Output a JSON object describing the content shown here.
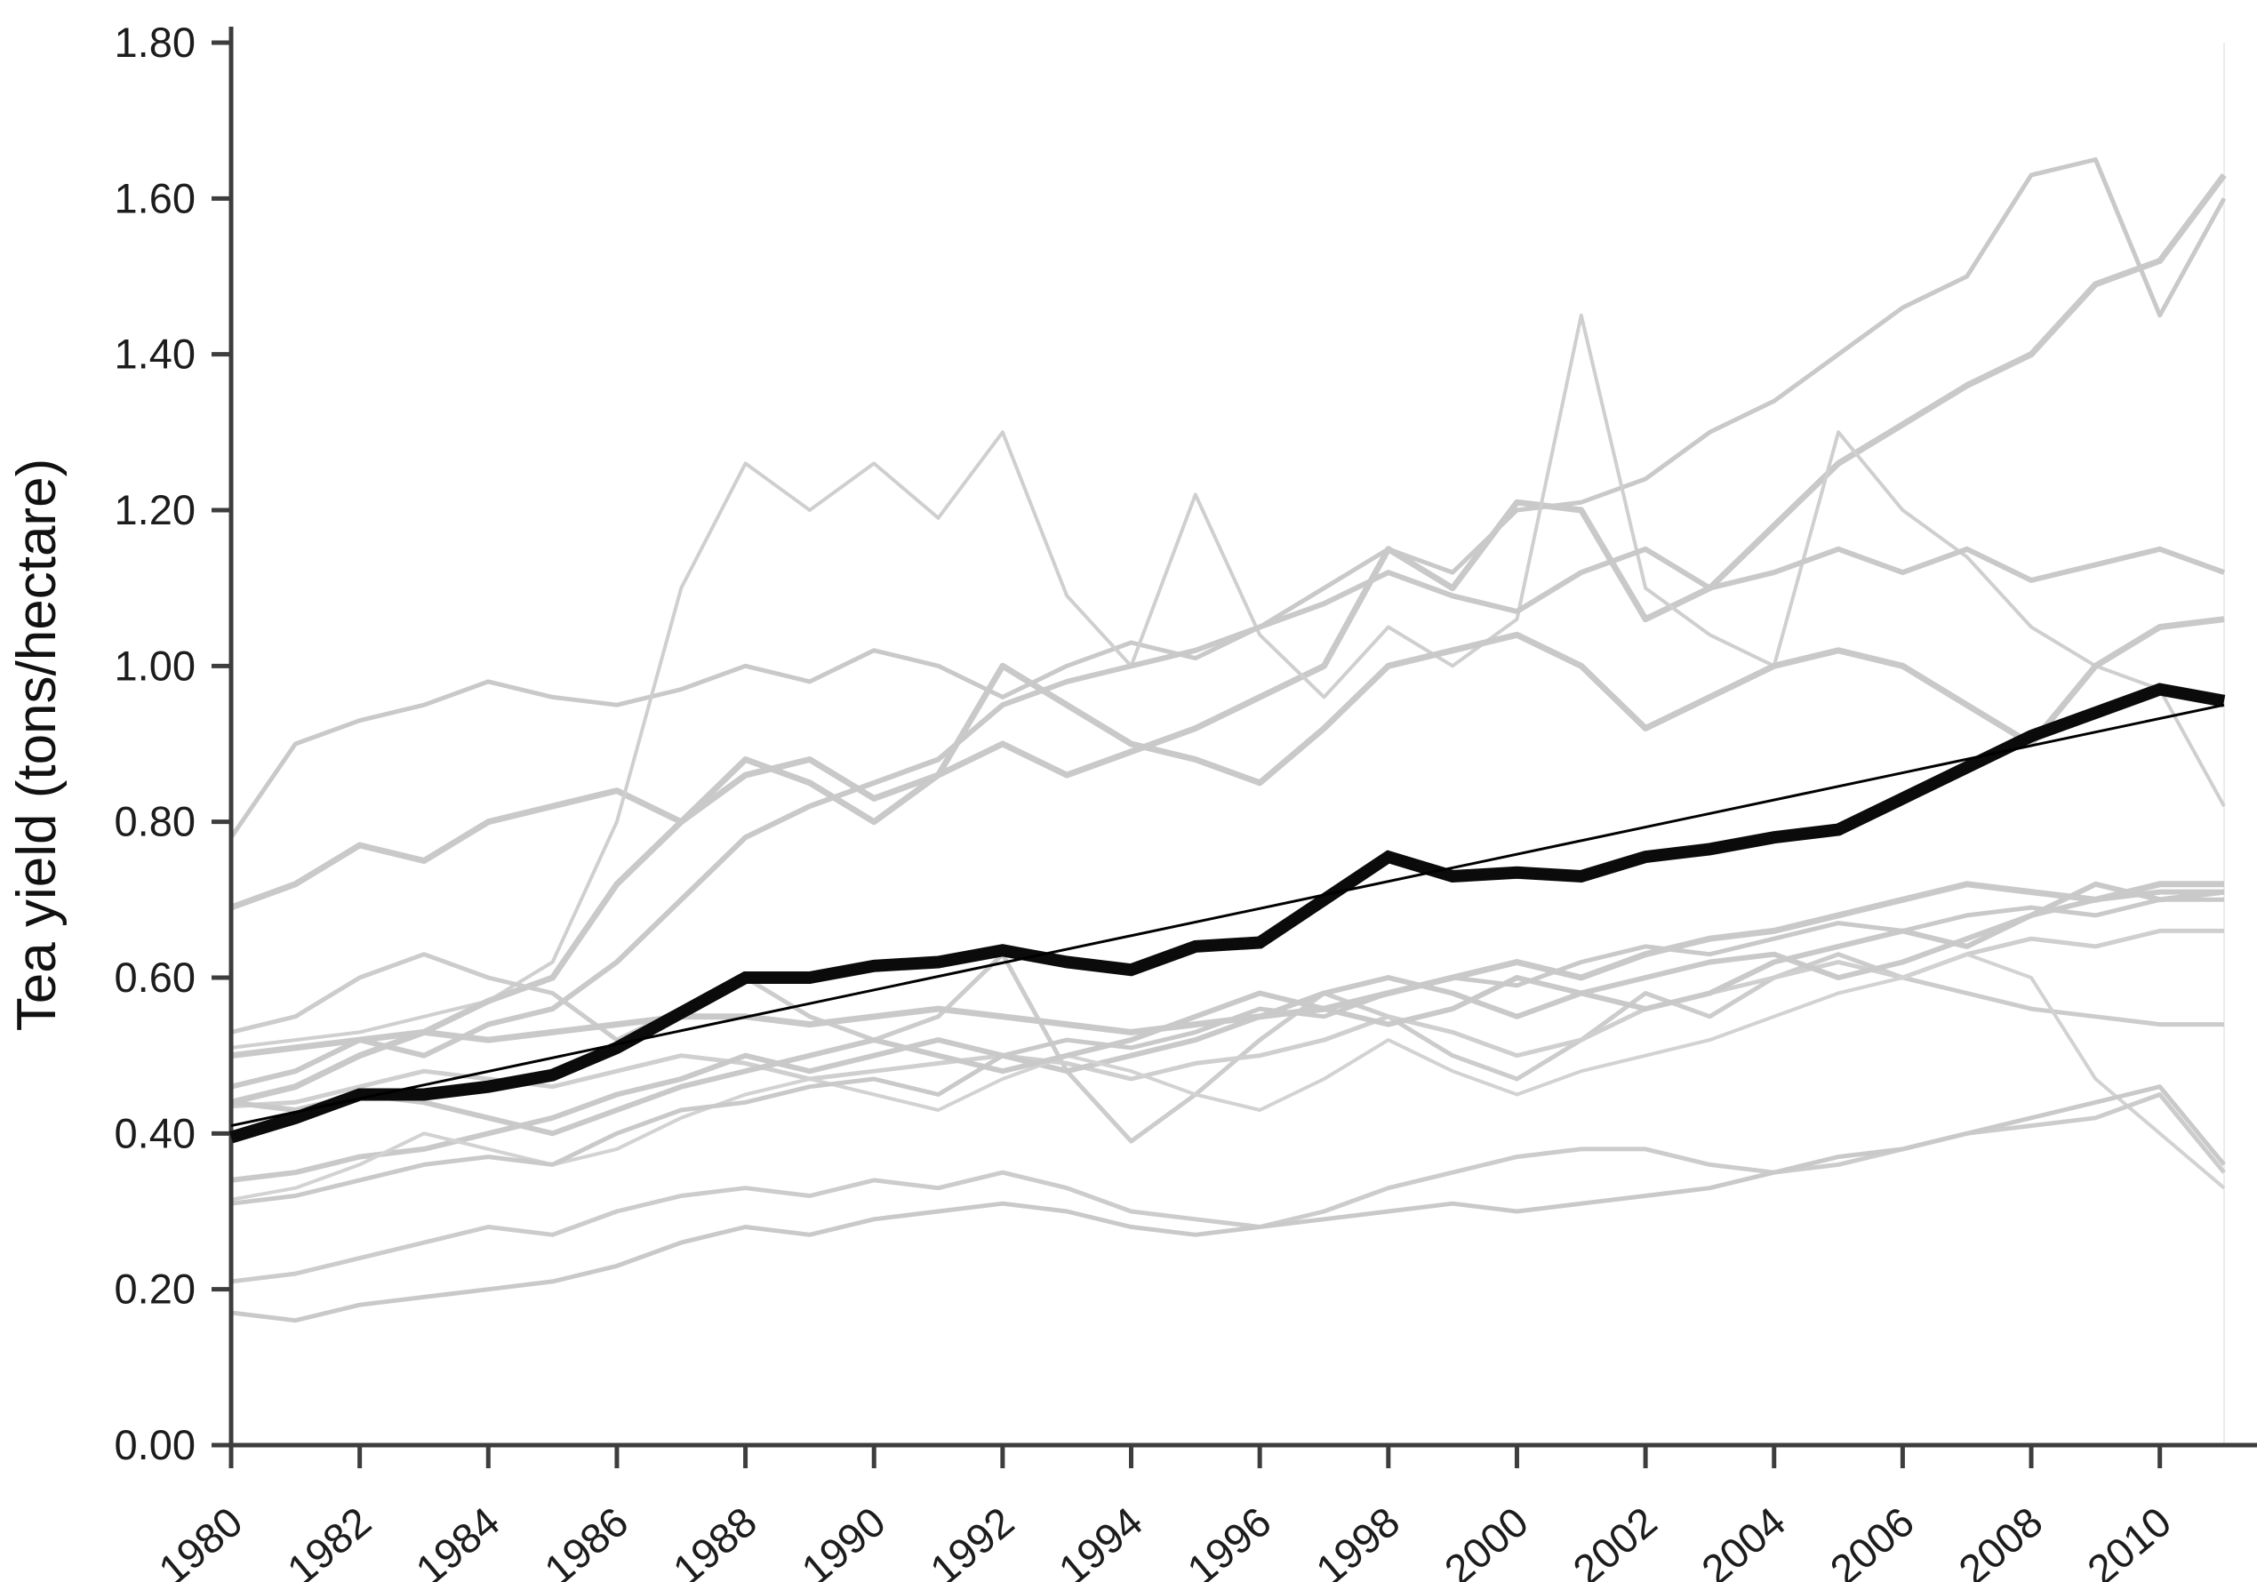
{
  "figure": {
    "kind": "statistical line chart",
    "background": "#ffffff"
  },
  "axis_style": {
    "axis_color": "#3d3d3d",
    "tick_label_color": "#1c1c1c",
    "right_edge_color": "#ececec"
  },
  "chart_data": {
    "type": "line",
    "title": "",
    "xlabel": "",
    "ylabel": "Tea yield (tons/hectare)",
    "ylim": [
      0.0,
      1.8
    ],
    "xlim": [
      1980,
      2011.5
    ],
    "grid": "off",
    "legend": "none",
    "y_tick_values": [
      0.0,
      0.2,
      0.4,
      0.6,
      0.8,
      1.0,
      1.2,
      1.4,
      1.6,
      1.8
    ],
    "y_tick_labels": [
      "0.00",
      "0.20",
      "0.40",
      "0.60",
      "0.80",
      "1.00",
      "1.20",
      "1.40",
      "1.60",
      "1.80"
    ],
    "x_tick_values": [
      1980,
      1982,
      1984,
      1986,
      1988,
      1990,
      1992,
      1994,
      1996,
      1998,
      2000,
      2002,
      2004,
      2006,
      2008,
      2010
    ],
    "x_tick_labels": [
      "1980",
      "1982",
      "1984",
      "1986",
      "1988",
      "1990",
      "1992",
      "1994",
      "1996",
      "1998",
      "2000",
      "2002",
      "2004",
      "2006",
      "2008",
      "2010"
    ],
    "x": [
      1980,
      1981,
      1982,
      1983,
      1984,
      1985,
      1986,
      1987,
      1988,
      1989,
      1990,
      1991,
      1992,
      1993,
      1994,
      1995,
      1996,
      1997,
      1998,
      1999,
      2000,
      2001,
      2002,
      2003,
      2004,
      2005,
      2006,
      2007,
      2008,
      2009,
      2010,
      2011
    ],
    "mean_series": {
      "name": "mean-across-series",
      "color": "#0b0b0b",
      "width": 14,
      "values": [
        0.395,
        0.42,
        0.45,
        0.45,
        0.46,
        0.475,
        0.51,
        0.555,
        0.6,
        0.6,
        0.615,
        0.62,
        0.635,
        0.62,
        0.61,
        0.64,
        0.645,
        0.7,
        0.755,
        0.73,
        0.735,
        0.73,
        0.755,
        0.765,
        0.78,
        0.79,
        0.83,
        0.87,
        0.91,
        0.94,
        0.97,
        0.955
      ]
    },
    "trendline": {
      "name": "linear-trend",
      "color": "#000000",
      "width": 3,
      "x": [
        1980,
        2011
      ],
      "y": [
        0.41,
        0.95
      ]
    },
    "series": [
      {
        "name": "gray-line-1",
        "color": "#c9c9c9",
        "width": 5,
        "values": [
          0.78,
          0.9,
          0.93,
          0.95,
          0.98,
          0.96,
          0.95,
          0.97,
          1.0,
          0.98,
          1.02,
          1.0,
          0.96,
          1.0,
          1.03,
          1.01,
          1.05,
          1.1,
          1.15,
          1.12,
          1.2,
          1.21,
          1.24,
          1.3,
          1.34,
          1.4,
          1.46,
          1.5,
          1.63,
          1.65,
          1.45,
          1.6
        ]
      },
      {
        "name": "gray-line-2",
        "color": "#c9c9c9",
        "width": 7,
        "values": [
          0.69,
          0.72,
          0.77,
          0.75,
          0.8,
          0.82,
          0.84,
          0.8,
          0.86,
          0.88,
          0.83,
          0.86,
          0.9,
          0.86,
          0.89,
          0.92,
          0.96,
          1.0,
          1.15,
          1.1,
          1.21,
          1.2,
          1.06,
          1.1,
          1.18,
          1.26,
          1.31,
          1.36,
          1.4,
          1.49,
          1.52,
          1.63
        ]
      },
      {
        "name": "gray-line-3",
        "color": "#cfcfcf",
        "width": 4,
        "values": [
          0.51,
          0.52,
          0.53,
          0.55,
          0.57,
          0.62,
          0.8,
          1.1,
          1.26,
          1.2,
          1.26,
          1.19,
          1.3,
          1.09,
          1.0,
          1.22,
          1.04,
          0.96,
          1.05,
          1.0,
          1.06,
          1.45,
          1.1,
          1.04,
          1.0,
          1.3,
          1.2,
          1.14,
          1.05,
          1.0,
          0.97,
          0.82
        ]
      },
      {
        "name": "gray-line-4",
        "color": "#c9c9c9",
        "width": 6,
        "values": [
          0.46,
          0.48,
          0.52,
          0.5,
          0.54,
          0.56,
          0.62,
          0.7,
          0.78,
          0.82,
          0.85,
          0.88,
          0.95,
          0.98,
          1.0,
          1.02,
          1.05,
          1.08,
          1.12,
          1.09,
          1.07,
          1.12,
          1.15,
          1.1,
          1.12,
          1.15,
          1.12,
          1.15,
          1.11,
          1.13,
          1.15,
          1.12
        ]
      },
      {
        "name": "gray-line-5",
        "color": "#c9c9c9",
        "width": 7,
        "values": [
          0.44,
          0.46,
          0.5,
          0.53,
          0.57,
          0.6,
          0.72,
          0.8,
          0.88,
          0.85,
          0.8,
          0.86,
          1.0,
          0.95,
          0.9,
          0.88,
          0.85,
          0.92,
          1.0,
          1.02,
          1.04,
          1.0,
          0.92,
          0.96,
          1.0,
          1.02,
          1.0,
          0.95,
          0.9,
          1.0,
          1.05,
          1.06
        ]
      },
      {
        "name": "gray-line-6",
        "color": "#cccccc",
        "width": 5,
        "values": [
          0.53,
          0.55,
          0.6,
          0.63,
          0.6,
          0.58,
          0.52,
          0.56,
          0.6,
          0.55,
          0.52,
          0.55,
          0.63,
          0.48,
          0.39,
          0.45,
          0.52,
          0.58,
          0.55,
          0.5,
          0.47,
          0.52,
          0.58,
          0.55,
          0.6,
          0.63,
          0.6,
          0.58,
          0.56,
          0.55,
          0.54,
          0.54
        ]
      },
      {
        "name": "gray-line-7",
        "color": "#c9c9c9",
        "width": 7,
        "values": [
          0.5,
          0.51,
          0.52,
          0.53,
          0.52,
          0.53,
          0.54,
          0.55,
          0.55,
          0.54,
          0.55,
          0.56,
          0.55,
          0.54,
          0.53,
          0.54,
          0.55,
          0.56,
          0.58,
          0.6,
          0.62,
          0.6,
          0.63,
          0.65,
          0.66,
          0.68,
          0.7,
          0.72,
          0.71,
          0.7,
          0.72,
          0.72
        ]
      },
      {
        "name": "gray-line-8",
        "color": "#cfcfcf",
        "width": 5,
        "values": [
          0.435,
          0.44,
          0.46,
          0.48,
          0.47,
          0.46,
          0.48,
          0.5,
          0.49,
          0.47,
          0.48,
          0.49,
          0.5,
          0.49,
          0.47,
          0.49,
          0.5,
          0.52,
          0.55,
          0.53,
          0.5,
          0.52,
          0.56,
          0.58,
          0.6,
          0.62,
          0.6,
          0.63,
          0.65,
          0.64,
          0.66,
          0.66
        ]
      },
      {
        "name": "gray-line-9",
        "color": "#c9c9c9",
        "width": 6,
        "values": [
          0.34,
          0.35,
          0.37,
          0.38,
          0.4,
          0.42,
          0.45,
          0.47,
          0.5,
          0.48,
          0.5,
          0.52,
          0.5,
          0.48,
          0.5,
          0.52,
          0.55,
          0.58,
          0.6,
          0.58,
          0.55,
          0.58,
          0.6,
          0.62,
          0.63,
          0.6,
          0.62,
          0.65,
          0.68,
          0.7,
          0.71,
          0.71
        ]
      },
      {
        "name": "gray-line-10",
        "color": "#d2d2d2",
        "width": 4,
        "values": [
          0.315,
          0.33,
          0.36,
          0.4,
          0.38,
          0.36,
          0.38,
          0.42,
          0.45,
          0.47,
          0.45,
          0.43,
          0.47,
          0.5,
          0.48,
          0.45,
          0.43,
          0.47,
          0.52,
          0.48,
          0.45,
          0.48,
          0.5,
          0.52,
          0.55,
          0.58,
          0.6,
          0.63,
          0.6,
          0.47,
          0.4,
          0.33
        ]
      },
      {
        "name": "gray-line-11",
        "color": "#c9c9c9",
        "width": 5,
        "values": [
          0.31,
          0.32,
          0.34,
          0.36,
          0.37,
          0.36,
          0.4,
          0.43,
          0.44,
          0.46,
          0.47,
          0.45,
          0.5,
          0.52,
          0.51,
          0.53,
          0.56,
          0.55,
          0.58,
          0.6,
          0.59,
          0.62,
          0.64,
          0.63,
          0.65,
          0.67,
          0.66,
          0.68,
          0.69,
          0.68,
          0.7,
          0.7
        ]
      },
      {
        "name": "gray-line-12",
        "color": "#cccccc",
        "width": 5,
        "values": [
          0.21,
          0.22,
          0.24,
          0.26,
          0.28,
          0.27,
          0.3,
          0.32,
          0.33,
          0.32,
          0.34,
          0.33,
          0.35,
          0.33,
          0.3,
          0.29,
          0.28,
          0.3,
          0.33,
          0.35,
          0.37,
          0.38,
          0.38,
          0.36,
          0.35,
          0.36,
          0.38,
          0.4,
          0.41,
          0.42,
          0.45,
          0.35
        ]
      },
      {
        "name": "gray-line-13",
        "color": "#c9c9c9",
        "width": 5,
        "values": [
          0.17,
          0.16,
          0.18,
          0.19,
          0.2,
          0.21,
          0.23,
          0.26,
          0.28,
          0.27,
          0.29,
          0.3,
          0.31,
          0.3,
          0.28,
          0.27,
          0.28,
          0.29,
          0.3,
          0.31,
          0.3,
          0.31,
          0.32,
          0.33,
          0.35,
          0.37,
          0.38,
          0.4,
          0.42,
          0.44,
          0.46,
          0.36
        ]
      },
      {
        "name": "gray-line-14",
        "color": "#c9c9c9",
        "width": 6,
        "values": [
          0.44,
          0.43,
          0.45,
          0.44,
          0.42,
          0.4,
          0.43,
          0.46,
          0.48,
          0.5,
          0.52,
          0.5,
          0.48,
          0.5,
          0.52,
          0.55,
          0.58,
          0.56,
          0.54,
          0.56,
          0.6,
          0.58,
          0.56,
          0.58,
          0.62,
          0.64,
          0.66,
          0.64,
          0.68,
          0.72,
          0.7,
          0.71
        ]
      }
    ]
  }
}
